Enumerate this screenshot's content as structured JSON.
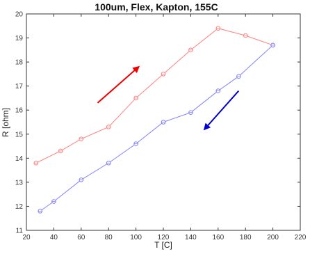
{
  "chart_data": {
    "type": "line",
    "title": "100um, Flex, Kapton, 155C",
    "xlabel": "T [C]",
    "ylabel": "R [ohm]",
    "xlim": [
      20,
      220
    ],
    "ylim": [
      11,
      20
    ],
    "xticks": [
      20,
      40,
      60,
      80,
      100,
      120,
      140,
      160,
      180,
      200,
      220
    ],
    "yticks": [
      11,
      12,
      13,
      14,
      15,
      16,
      17,
      18,
      19,
      20
    ],
    "grid": false,
    "series": [
      {
        "color": "#ff8080",
        "marker": "circle",
        "x": [
          27,
          45,
          60,
          80,
          100,
          120,
          140,
          160,
          180,
          200
        ],
        "y": [
          13.8,
          14.3,
          14.8,
          15.3,
          16.5,
          17.5,
          18.5,
          19.4,
          19.1,
          18.7
        ]
      },
      {
        "color": "#8080ff",
        "marker": "circle",
        "x": [
          30,
          40,
          60,
          80,
          100,
          120,
          140,
          160,
          175,
          200
        ],
        "y": [
          11.8,
          12.2,
          13.1,
          13.8,
          14.6,
          15.5,
          15.9,
          16.8,
          17.4,
          18.7
        ]
      }
    ],
    "annotations": [
      {
        "type": "arrow",
        "color": "#ee0000",
        "from": [
          72,
          16.3
        ],
        "to": [
          102,
          17.8
        ]
      },
      {
        "type": "arrow",
        "color": "#0000cc",
        "from": [
          175,
          16.8
        ],
        "to": [
          150,
          15.2
        ]
      }
    ]
  }
}
